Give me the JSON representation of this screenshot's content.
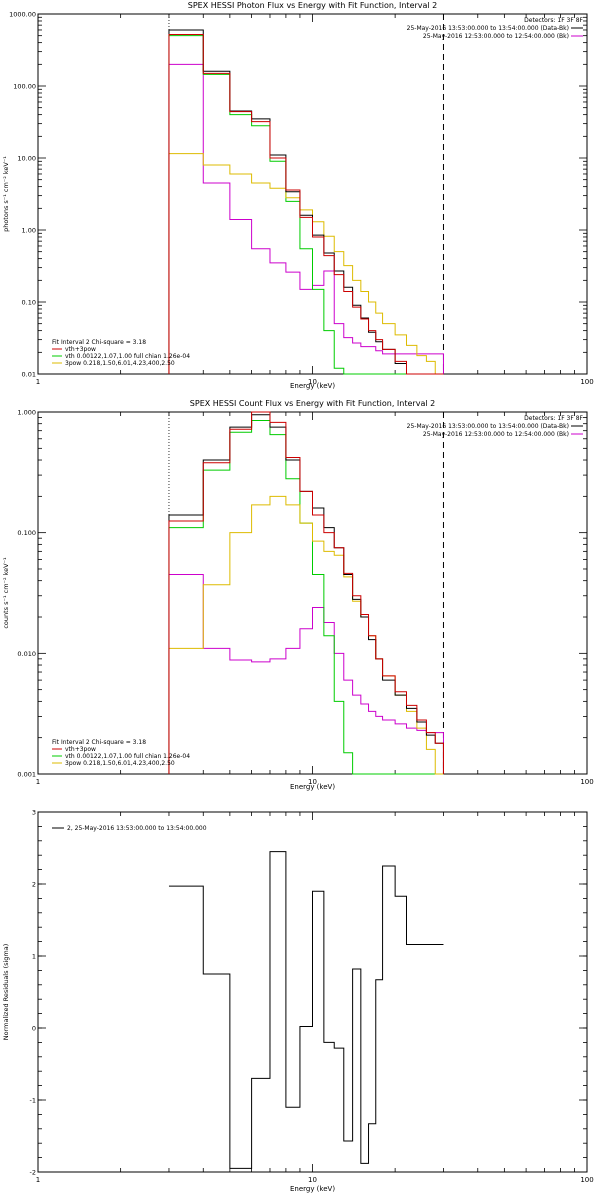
{
  "chart_data": [
    {
      "type": "line",
      "title": "SPEX HESSI Photon Flux vs Energy with Fit Function, Interval 2",
      "xlabel": "Energy (keV)",
      "ylabel": "photons s⁻¹ cm⁻² keV⁻¹",
      "xscale": "log",
      "yscale": "log",
      "xlim": [
        1,
        100
      ],
      "ylim": [
        0.01,
        1000
      ],
      "xticks": [
        "1",
        "10",
        "100"
      ],
      "yticks": [
        "0.01",
        "0.10",
        "1.00",
        "10.00",
        "100.00",
        "1000.00"
      ],
      "legend_right": {
        "detectors": "Detectors: 1F 3F 8F",
        "entries": [
          {
            "label": "25-May-2016 13:53:00.000 to 13:54:00.000 (Data-Bk)",
            "color": "#000000"
          },
          {
            "label": "25-May-2016 12:53:00.000 to 12:54:00.000 (Bk)",
            "color": "#cc00cc"
          }
        ]
      },
      "fit_info": {
        "header": "Fit Interval  2   Chi-square = 3.18",
        "entries": [
          {
            "label": "vth+3pow",
            "color": "#cc0000"
          },
          {
            "label": "vth 0.00122,1.07,1.00  full chian 1.26e-04",
            "color": "#00cc00"
          },
          {
            "label": "3pow 0.218,1.50,6.01,4.23,400,2.50",
            "color": "#ddbb00"
          }
        ]
      },
      "dotted_line_x": 3,
      "dashed_line_x": 30,
      "bin_edges": [
        3,
        4,
        5,
        6,
        7,
        8,
        9,
        10,
        11,
        12,
        13,
        14,
        15,
        16,
        17,
        18,
        20,
        22,
        24,
        26,
        28,
        30
      ],
      "series": [
        {
          "name": "Data-Bk",
          "color": "#000000",
          "values": [
            600,
            160,
            45,
            35,
            11,
            3.4,
            1.6,
            0.85,
            0.48,
            0.27,
            0.16,
            0.09,
            0.06,
            0.038,
            0.028,
            0.022,
            0.014,
            0.01,
            0.01,
            0.01,
            0.01
          ]
        },
        {
          "name": "vth+3pow",
          "color": "#cc0000",
          "values": [
            520,
            150,
            44,
            32,
            10,
            3.6,
            1.5,
            0.8,
            0.44,
            0.24,
            0.14,
            0.085,
            0.058,
            0.04,
            0.03,
            0.022,
            0.015,
            0.01,
            0.01,
            0.01,
            0.01
          ]
        },
        {
          "name": "vth",
          "color": "#00cc00",
          "values": [
            500,
            145,
            40,
            28,
            9,
            2.5,
            0.55,
            0.15,
            0.04,
            0.012,
            0.01,
            0.01,
            0.01,
            0.01,
            0.01,
            0.01,
            0.01,
            0.01,
            0.01,
            0.01,
            0.01
          ]
        },
        {
          "name": "3pow",
          "color": "#ddbb00",
          "values": [
            11.5,
            8,
            6,
            4.5,
            3.8,
            2.8,
            1.9,
            1.3,
            0.82,
            0.5,
            0.32,
            0.2,
            0.14,
            0.1,
            0.07,
            0.05,
            0.035,
            0.025,
            0.018,
            0.015,
            0.01
          ]
        },
        {
          "name": "Bk",
          "color": "#cc00cc",
          "values": [
            200,
            4.5,
            1.4,
            0.55,
            0.35,
            0.26,
            0.15,
            0.17,
            0.27,
            0.05,
            0.032,
            0.027,
            0.024,
            0.024,
            0.021,
            0.019,
            0.019,
            0.019,
            0.019,
            0.019,
            0.019
          ]
        }
      ]
    },
    {
      "type": "line",
      "title": "SPEX HESSI Count Flux vs Energy with Fit Function, Interval 2",
      "xlabel": "Energy (keV)",
      "ylabel": "counts s⁻¹ cm⁻² keV⁻¹",
      "xscale": "log",
      "yscale": "log",
      "xlim": [
        1,
        100
      ],
      "ylim": [
        0.001,
        1
      ],
      "xticks": [
        "1",
        "10",
        "100"
      ],
      "yticks": [
        "0.001",
        "0.010",
        "0.100",
        "1.000"
      ],
      "legend_right": {
        "detectors": "Detectors: 1F 3F 8F",
        "entries": [
          {
            "label": "25-May-2016 13:53:00.000 to 13:54:00.000 (Data-Bk)",
            "color": "#000000"
          },
          {
            "label": "25-May-2016 12:53:00.000 to 12:54:00.000 (Bk)",
            "color": "#cc00cc"
          }
        ]
      },
      "fit_info": {
        "header": "Fit Interval  2   Chi-square = 3.18",
        "entries": [
          {
            "label": "vth+3pow",
            "color": "#cc0000"
          },
          {
            "label": "vth 0.00122,1.07,1.00  full chian 1.26e-04",
            "color": "#00cc00"
          },
          {
            "label": "3pow 0.218,1.50,6.01,4.23,400,2.50",
            "color": "#ddbb00"
          }
        ]
      },
      "dotted_line_x": 3,
      "dashed_line_x": 30,
      "bin_edges": [
        3,
        4,
        5,
        6,
        7,
        8,
        9,
        10,
        11,
        12,
        13,
        14,
        15,
        16,
        17,
        18,
        20,
        22,
        24,
        26,
        28,
        30
      ],
      "series": [
        {
          "name": "Data-Bk",
          "color": "#000000",
          "values": [
            0.14,
            0.4,
            0.75,
            0.95,
            0.75,
            0.4,
            0.22,
            0.16,
            0.11,
            0.075,
            0.045,
            0.028,
            0.02,
            0.013,
            0.009,
            0.006,
            0.0045,
            0.0035,
            0.0027,
            0.0021,
            0.0018
          ]
        },
        {
          "name": "vth+3pow",
          "color": "#cc0000",
          "values": [
            0.125,
            0.38,
            0.72,
            1.0,
            0.82,
            0.42,
            0.22,
            0.14,
            0.1,
            0.075,
            0.046,
            0.03,
            0.021,
            0.014,
            0.009,
            0.0065,
            0.0048,
            0.0037,
            0.0028,
            0.0022,
            0.0018
          ]
        },
        {
          "name": "vth",
          "color": "#00cc00",
          "values": [
            0.11,
            0.33,
            0.68,
            0.85,
            0.65,
            0.28,
            0.12,
            0.045,
            0.014,
            0.004,
            0.0015,
            0.001,
            0.001,
            0.001,
            0.001,
            0.001,
            0.001,
            0.001,
            0.001,
            0.001,
            0.001
          ]
        },
        {
          "name": "3pow",
          "color": "#ddbb00",
          "values": [
            0.011,
            0.037,
            0.1,
            0.17,
            0.2,
            0.17,
            0.12,
            0.085,
            0.07,
            0.065,
            0.043,
            0.027,
            0.02,
            0.014,
            0.009,
            0.0065,
            0.0045,
            0.0033,
            0.0024,
            0.0016,
            0.001
          ]
        },
        {
          "name": "Bk",
          "color": "#cc00cc",
          "values": [
            0.045,
            0.011,
            0.0088,
            0.0085,
            0.009,
            0.011,
            0.016,
            0.024,
            0.018,
            0.01,
            0.006,
            0.0045,
            0.0038,
            0.0033,
            0.003,
            0.0028,
            0.0026,
            0.0024,
            0.0023,
            0.0022,
            0.0022
          ]
        }
      ]
    },
    {
      "type": "line",
      "title": "",
      "xlabel": "Energy (keV)",
      "ylabel": "Normalized Residuals (sigma)",
      "xscale": "log",
      "yscale": "linear",
      "xlim": [
        1,
        100
      ],
      "ylim": [
        -2,
        3
      ],
      "xticks": [
        "1",
        "10",
        "100"
      ],
      "yticks": [
        "-2",
        "-1",
        "0",
        "1",
        "2",
        "3"
      ],
      "legend": {
        "label": "2, 25-May-2016 13:53:00.000 to 13:54:00.000",
        "color": "#000000"
      },
      "bin_edges": [
        3,
        4,
        5,
        6,
        7,
        8,
        9,
        10,
        11,
        12,
        13,
        14,
        15,
        16,
        17,
        18,
        20,
        22,
        24,
        26,
        28,
        30
      ],
      "series": [
        {
          "name": "",
          "color": "#000000",
          "values": [
            1.97,
            0.75,
            -1.95,
            -0.7,
            2.45,
            -1.1,
            0.02,
            1.9,
            -0.2,
            -0.28,
            -1.57,
            0.82,
            -1.88,
            -1.33,
            0.67,
            2.25,
            1.83,
            1.16,
            1.16,
            1.16,
            1.16
          ]
        }
      ]
    }
  ]
}
